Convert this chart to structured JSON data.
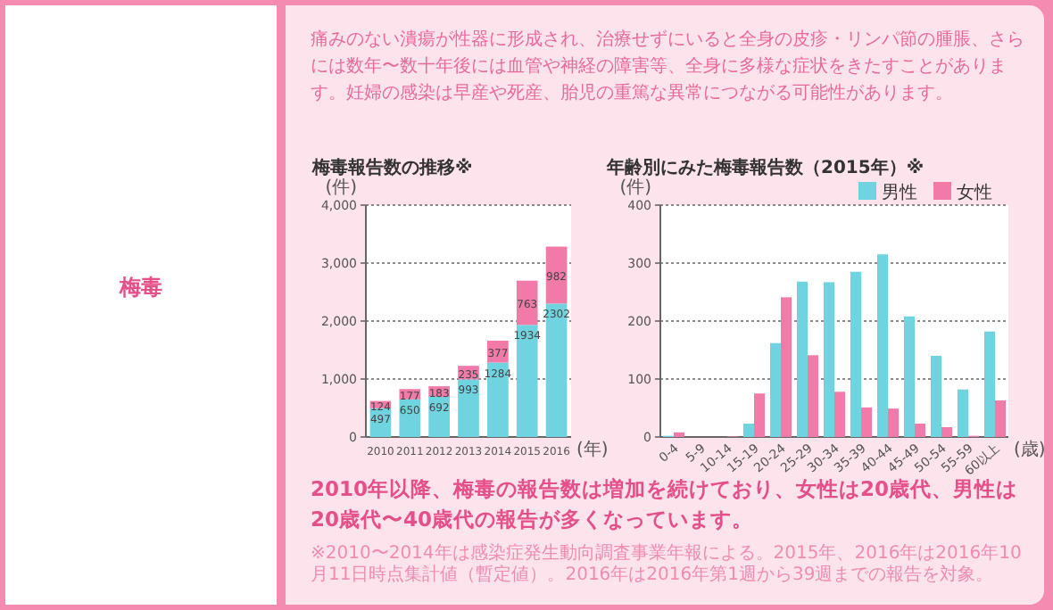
{
  "chart_data": [
    {
      "type": "other",
      "title": "梅毒",
      "annotations": [
        "痛みのない潰瘍が性器に形成され、治療せずにいると全身の皮疹・リンパ節の腫脹、さらには数年〜数十年後には血管や神経の障害等、全身に多様な症状をきたすことがあります。妊婦の感染は早産や死産、胎児の重篤な異常につながる可能性があります。",
        "2010年以降、梅毒の報告数は増加を続けており、女性は20歳代、男性は20歳代〜40歳代の報告が多くなっています。",
        "※2010〜2014年は感染症発生動向調査事業年報による。2015年、2016年は2016年10月11日時点集計値（暫定値）。2016年は2016年第1週から39週までの報告を対象。"
      ]
    },
    {
      "type": "bar",
      "title": "梅毒報告数の推移※",
      "ylabel": "(件)",
      "xlabel": "(年)",
      "categories": [
        "2010",
        "2011",
        "2012",
        "2013",
        "2014",
        "2015",
        "2016"
      ],
      "stacked": true,
      "data_labels": true,
      "grid": "y",
      "ylim": [
        0,
        4000
      ],
      "yticks": [
        0,
        {
          "value": 1000,
          "label": "1,000"
        },
        {
          "value": 2000,
          "label": "2,000"
        },
        {
          "value": 3000,
          "label": "3,000"
        },
        {
          "value": 4000,
          "label": "4,000"
        }
      ],
      "series": [
        {
          "color": "#6fd3e0",
          "values": [
            497,
            650,
            692,
            993,
            1284,
            1934,
            2302
          ]
        },
        {
          "color": "#f27aa8",
          "values": [
            124,
            177,
            183,
            235,
            377,
            763,
            982
          ]
        }
      ]
    },
    {
      "type": "bar",
      "title": "年齢別にみた梅毒報告数（2015年）※",
      "ylabel": "(件)",
      "xlabel": "(歳)",
      "categories": [
        "0-4",
        "5-9",
        "10-14",
        "15-19",
        "20-24",
        "25-29",
        "30-34",
        "35-39",
        "40-44",
        "45-49",
        "50-54",
        "55-59",
        "60以上"
      ],
      "grid": "y",
      "legend": "top right",
      "ylim": [
        0,
        400
      ],
      "yticks": [
        0,
        100,
        200,
        300,
        400
      ],
      "series": [
        {
          "name": "男性",
          "color": "#6fd3e0",
          "values": [
            2,
            0,
            0,
            23,
            162,
            268,
            267,
            285,
            315,
            208,
            140,
            82,
            182
          ]
        },
        {
          "name": "女性",
          "color": "#f27aa8",
          "values": [
            8,
            0,
            1,
            75,
            241,
            141,
            78,
            51,
            49,
            23,
            17,
            2,
            63
          ]
        }
      ]
    }
  ]
}
